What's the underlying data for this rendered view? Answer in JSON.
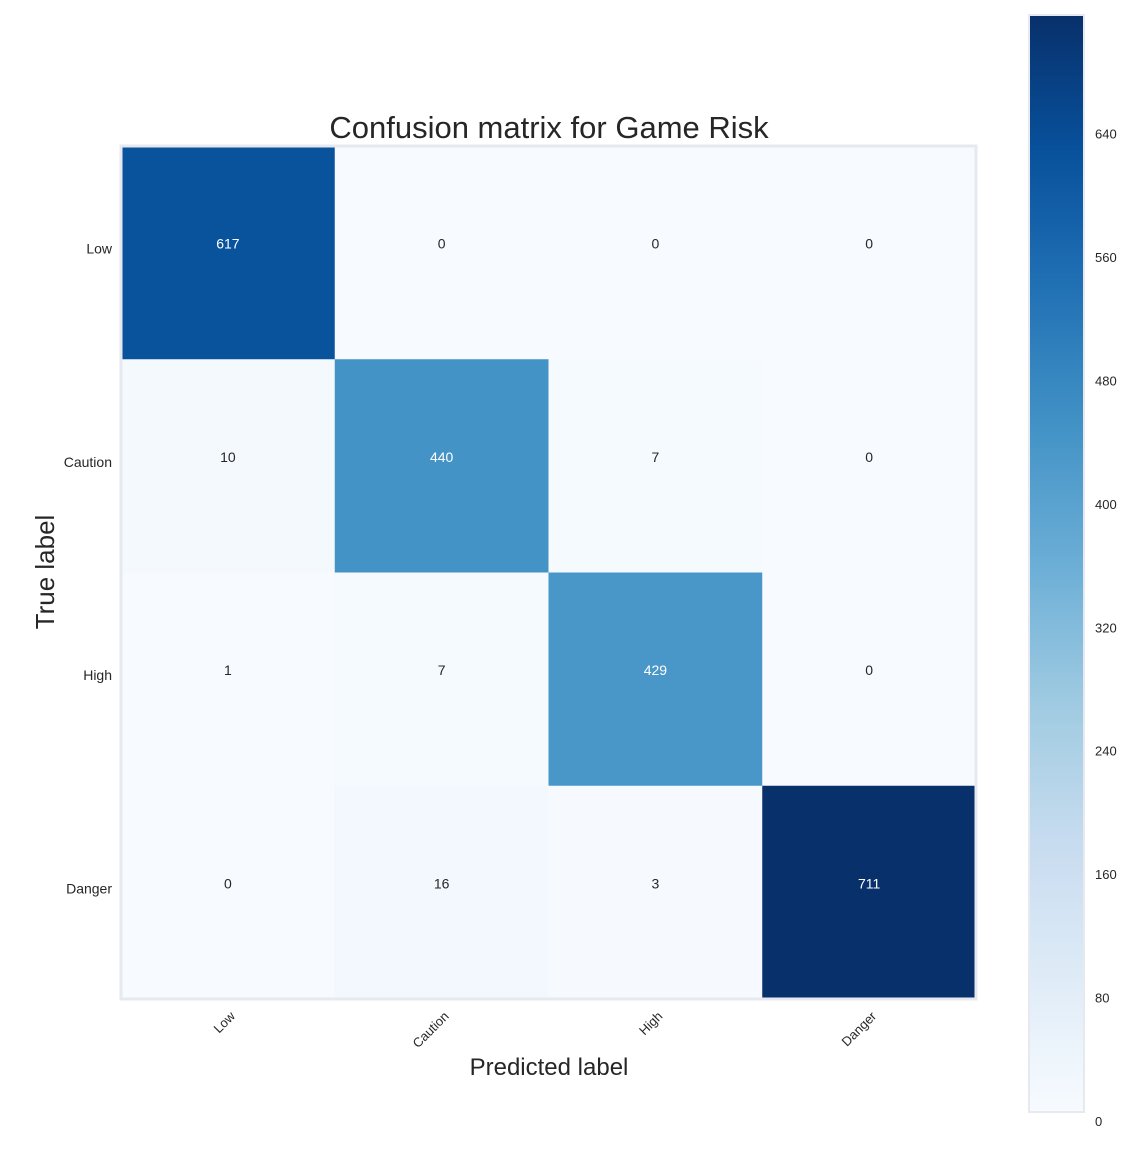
{
  "chart_data": {
    "type": "heatmap",
    "title": "Confusion matrix for Game Risk",
    "xlabel": "Predicted label",
    "ylabel": "True label",
    "x_categories": [
      "Low",
      "Caution",
      "High",
      "Danger"
    ],
    "y_categories": [
      "Low",
      "Caution",
      "High",
      "Danger"
    ],
    "matrix": [
      [
        617,
        0,
        0,
        0
      ],
      [
        10,
        440,
        7,
        0
      ],
      [
        1,
        7,
        429,
        0
      ],
      [
        0,
        16,
        3,
        711
      ]
    ],
    "colormap": "Blues",
    "colorbar": {
      "min": 0,
      "max": 711,
      "ticks": [
        0,
        80,
        160,
        240,
        320,
        400,
        480,
        560,
        640
      ]
    },
    "colors": {
      "low": "#f7fbff",
      "high": "#08306b",
      "grid": "#e6eaf0",
      "text_dark": "#262626",
      "text_light": "#ffffff"
    }
  }
}
